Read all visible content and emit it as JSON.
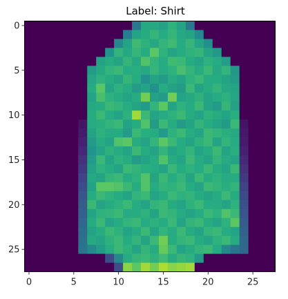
{
  "chart_data": {
    "type": "heatmap",
    "title": "Label: Shirt",
    "xlabel": "",
    "ylabel": "",
    "rows": 28,
    "cols": 28,
    "x_ticks": [
      0,
      5,
      10,
      15,
      20,
      25
    ],
    "y_ticks": [
      0,
      5,
      10,
      15,
      20,
      25
    ],
    "colormap": "viridis",
    "value_range": [
      0,
      255
    ],
    "grid": false,
    "colorbar": false,
    "values": [
      [
        0,
        0,
        0,
        0,
        0,
        0,
        0,
        0,
        0,
        0,
        0,
        0,
        104,
        155,
        155,
        148,
        166,
        150,
        104,
        0,
        0,
        0,
        0,
        0,
        0,
        0,
        0,
        0
      ],
      [
        0,
        0,
        0,
        0,
        0,
        0,
        0,
        0,
        0,
        0,
        0,
        110,
        150,
        160,
        170,
        158,
        170,
        155,
        150,
        122,
        0,
        0,
        0,
        0,
        0,
        0,
        0,
        0
      ],
      [
        0,
        0,
        0,
        0,
        0,
        0,
        0,
        0,
        0,
        0,
        120,
        150,
        175,
        165,
        155,
        168,
        175,
        160,
        170,
        150,
        128,
        0,
        0,
        0,
        0,
        0,
        0,
        0
      ],
      [
        0,
        0,
        0,
        0,
        0,
        0,
        0,
        0,
        0,
        132,
        168,
        155,
        170,
        160,
        190,
        165,
        150,
        158,
        165,
        170,
        150,
        136,
        0,
        0,
        0,
        0,
        0,
        0
      ],
      [
        0,
        0,
        0,
        0,
        0,
        0,
        0,
        0,
        148,
        160,
        150,
        168,
        155,
        185,
        168,
        160,
        175,
        172,
        160,
        150,
        165,
        158,
        142,
        0,
        0,
        0,
        0,
        0
      ],
      [
        0,
        0,
        0,
        0,
        0,
        0,
        0,
        140,
        155,
        168,
        172,
        158,
        162,
        155,
        170,
        158,
        165,
        180,
        168,
        160,
        172,
        155,
        168,
        136,
        0,
        0,
        0,
        0
      ],
      [
        0,
        0,
        0,
        0,
        0,
        0,
        0,
        152,
        165,
        160,
        150,
        170,
        158,
        130,
        150,
        140,
        160,
        150,
        165,
        172,
        158,
        160,
        150,
        140,
        0,
        0,
        0,
        0
      ],
      [
        0,
        0,
        0,
        0,
        0,
        0,
        0,
        160,
        190,
        150,
        165,
        158,
        140,
        150,
        130,
        160,
        148,
        140,
        172,
        150,
        160,
        168,
        155,
        150,
        0,
        0,
        0,
        0
      ],
      [
        0,
        0,
        0,
        0,
        0,
        0,
        0,
        150,
        180,
        165,
        158,
        150,
        160,
        200,
        148,
        140,
        200,
        150,
        155,
        165,
        150,
        158,
        165,
        152,
        0,
        0,
        0,
        0
      ],
      [
        0,
        0,
        0,
        0,
        0,
        0,
        0,
        155,
        160,
        172,
        168,
        158,
        150,
        140,
        168,
        190,
        150,
        165,
        158,
        172,
        150,
        140,
        170,
        148,
        0,
        0,
        0,
        0
      ],
      [
        0,
        0,
        0,
        0,
        0,
        0,
        0,
        160,
        172,
        158,
        150,
        165,
        220,
        172,
        150,
        158,
        165,
        172,
        160,
        150,
        165,
        158,
        150,
        162,
        0,
        0,
        0,
        0
      ],
      [
        0,
        0,
        0,
        0,
        0,
        0,
        15,
        158,
        162,
        168,
        172,
        150,
        160,
        185,
        140,
        172,
        158,
        140,
        150,
        168,
        160,
        150,
        140,
        172,
        15,
        0,
        0,
        0
      ],
      [
        0,
        0,
        0,
        0,
        0,
        0,
        20,
        150,
        165,
        158,
        160,
        140,
        172,
        162,
        158,
        140,
        165,
        172,
        160,
        150,
        172,
        168,
        162,
        155,
        18,
        0,
        0,
        0
      ],
      [
        0,
        0,
        0,
        0,
        0,
        0,
        25,
        140,
        160,
        150,
        185,
        190,
        160,
        150,
        168,
        190,
        172,
        158,
        150,
        165,
        172,
        150,
        168,
        158,
        20,
        0,
        0,
        0
      ],
      [
        0,
        0,
        0,
        0,
        0,
        0,
        30,
        132,
        150,
        165,
        158,
        150,
        172,
        160,
        150,
        168,
        150,
        160,
        168,
        150,
        160,
        172,
        150,
        162,
        25,
        0,
        0,
        0
      ],
      [
        0,
        0,
        0,
        0,
        0,
        0,
        38,
        140,
        172,
        150,
        165,
        158,
        140,
        150,
        158,
        185,
        160,
        150,
        172,
        160,
        150,
        168,
        158,
        150,
        30,
        0,
        0,
        0
      ],
      [
        0,
        0,
        0,
        0,
        0,
        0,
        45,
        148,
        165,
        160,
        150,
        172,
        168,
        162,
        158,
        150,
        172,
        160,
        165,
        158,
        172,
        160,
        150,
        172,
        38,
        0,
        0,
        0
      ],
      [
        0,
        0,
        0,
        0,
        0,
        0,
        52,
        155,
        150,
        168,
        172,
        160,
        165,
        185,
        150,
        172,
        160,
        168,
        150,
        172,
        160,
        165,
        158,
        160,
        45,
        0,
        0,
        0
      ],
      [
        0,
        0,
        0,
        0,
        0,
        0,
        60,
        148,
        190,
        190,
        185,
        172,
        160,
        185,
        160,
        168,
        165,
        172,
        160,
        150,
        172,
        168,
        162,
        168,
        52,
        0,
        0,
        0
      ],
      [
        0,
        0,
        0,
        0,
        0,
        0,
        68,
        160,
        172,
        165,
        158,
        150,
        168,
        172,
        150,
        160,
        172,
        165,
        168,
        160,
        150,
        158,
        172,
        160,
        58,
        0,
        0,
        0
      ],
      [
        0,
        0,
        0,
        0,
        0,
        0,
        75,
        172,
        150,
        160,
        165,
        172,
        158,
        150,
        168,
        172,
        160,
        150,
        165,
        172,
        158,
        160,
        150,
        165,
        62,
        0,
        0,
        0
      ],
      [
        0,
        0,
        0,
        0,
        0,
        0,
        80,
        150,
        165,
        168,
        172,
        158,
        160,
        165,
        150,
        172,
        168,
        160,
        150,
        158,
        172,
        165,
        185,
        172,
        68,
        0,
        0,
        0
      ],
      [
        0,
        0,
        0,
        0,
        0,
        0,
        85,
        160,
        172,
        150,
        160,
        168,
        172,
        158,
        165,
        160,
        172,
        150,
        168,
        172,
        160,
        150,
        165,
        190,
        75,
        0,
        0,
        0
      ],
      [
        0,
        0,
        0,
        0,
        0,
        0,
        92,
        148,
        160,
        172,
        165,
        150,
        160,
        172,
        150,
        168,
        158,
        172,
        160,
        150,
        168,
        172,
        158,
        150,
        80,
        0,
        0,
        0
      ],
      [
        0,
        0,
        0,
        0,
        0,
        0,
        96,
        155,
        150,
        165,
        172,
        160,
        168,
        150,
        172,
        200,
        160,
        168,
        172,
        160,
        150,
        165,
        172,
        160,
        85,
        0,
        0,
        0
      ],
      [
        0,
        0,
        0,
        0,
        0,
        0,
        100,
        120,
        140,
        160,
        172,
        165,
        150,
        168,
        160,
        195,
        172,
        150,
        160,
        168,
        172,
        158,
        120,
        100,
        88,
        0,
        0,
        0
      ],
      [
        0,
        0,
        0,
        0,
        0,
        0,
        0,
        0,
        0,
        60,
        120,
        160,
        170,
        172,
        165,
        175,
        160,
        170,
        165,
        140,
        0,
        0,
        0,
        0,
        0,
        0,
        0,
        0
      ],
      [
        0,
        0,
        0,
        0,
        0,
        0,
        0,
        0,
        0,
        0,
        60,
        210,
        190,
        220,
        200,
        225,
        210,
        215,
        220,
        0,
        0,
        0,
        0,
        0,
        0,
        0,
        0,
        0
      ]
    ]
  }
}
